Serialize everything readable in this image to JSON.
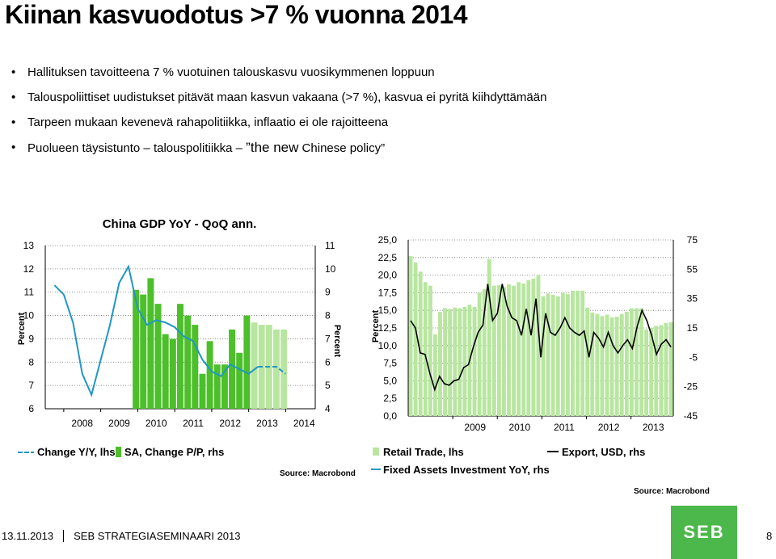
{
  "slide": {
    "title": "Kiinan kasvuodotus  >7 % vuonna 2014",
    "bullets": [
      "Hallituksen tavoitteena 7 % vuotuinen talouskasvu vuosikymmenen loppuun",
      "Talouspoliittiset uudistukset pitävät maan kasvun vakaana (>7 %), kasvua ei pyritä kiihdyttämään",
      "Tarpeen mukaan kevenevä rahapolitiikka, inflaatio ei ole rajoitteena",
      "Puolueen täysistunto – talouspolitiikka – "
    ],
    "bullet4_em": "the new",
    "bullet4_tail": " Chinese policy”",
    "bullet4_quote": "”",
    "footer_date": "13.11.2013",
    "footer_event": "SEB STRATEGIASEMINAARI 2013",
    "page_number": "8",
    "logo_text": "SEB",
    "colors": {
      "bar_dark": "#4cbf2a",
      "bar_light": "#b8e6a0",
      "line_blue": "#2196c4",
      "export_line": "#000000",
      "logo_green": "#4cb74a"
    }
  },
  "chart_data": [
    {
      "type": "bar",
      "title": "China GDP YoY - QoQ ann.",
      "ylabel_left": "Percent",
      "ylabel_right": "Percent",
      "ylim_left": [
        6,
        13
      ],
      "ylim_right": [
        4,
        11
      ],
      "yticks_left": [
        "6",
        "7",
        "8",
        "9",
        "10",
        "11",
        "12",
        "13"
      ],
      "yticks_right": [
        "4",
        "5",
        "6",
        "7",
        "8",
        "9",
        "10",
        "11"
      ],
      "x_labels": [
        "2008",
        "2009",
        "2010",
        "2011",
        "2012",
        "2013",
        "2014"
      ],
      "x_start": 2007.5,
      "x_end": 2014.8,
      "legend": [
        "Change Y/Y, lhs",
        "SA, Change P/P, rhs"
      ],
      "source": "Source: Macrobond",
      "bars_rhs": [
        {
          "x": 2009.95,
          "v": 9.1,
          "kind": "actual"
        },
        {
          "x": 2010.15,
          "v": 8.9,
          "kind": "actual"
        },
        {
          "x": 2010.35,
          "v": 9.6,
          "kind": "actual"
        },
        {
          "x": 2010.55,
          "v": 8.5,
          "kind": "actual"
        },
        {
          "x": 2010.75,
          "v": 7.2,
          "kind": "actual"
        },
        {
          "x": 2010.95,
          "v": 7.0,
          "kind": "actual"
        },
        {
          "x": 2011.15,
          "v": 8.5,
          "kind": "actual"
        },
        {
          "x": 2011.35,
          "v": 8.0,
          "kind": "actual"
        },
        {
          "x": 2011.55,
          "v": 7.6,
          "kind": "actual"
        },
        {
          "x": 2011.75,
          "v": 5.5,
          "kind": "actual"
        },
        {
          "x": 2011.95,
          "v": 6.9,
          "kind": "actual"
        },
        {
          "x": 2012.15,
          "v": 5.9,
          "kind": "actual"
        },
        {
          "x": 2012.35,
          "v": 5.9,
          "kind": "actual"
        },
        {
          "x": 2012.55,
          "v": 7.4,
          "kind": "actual"
        },
        {
          "x": 2012.75,
          "v": 6.4,
          "kind": "actual"
        },
        {
          "x": 2012.95,
          "v": 8.0,
          "kind": "actual"
        },
        {
          "x": 2013.15,
          "v": 7.7,
          "kind": "forecast"
        },
        {
          "x": 2013.35,
          "v": 7.6,
          "kind": "forecast"
        },
        {
          "x": 2013.55,
          "v": 7.6,
          "kind": "forecast"
        },
        {
          "x": 2013.75,
          "v": 7.4,
          "kind": "forecast"
        },
        {
          "x": 2013.95,
          "v": 7.4,
          "kind": "forecast"
        }
      ],
      "line_lhs": [
        {
          "x": 2007.75,
          "v": 11.3
        },
        {
          "x": 2008.0,
          "v": 10.9
        },
        {
          "x": 2008.25,
          "v": 9.7
        },
        {
          "x": 2008.5,
          "v": 7.5
        },
        {
          "x": 2008.75,
          "v": 6.6
        },
        {
          "x": 2009.0,
          "v": 8.1
        },
        {
          "x": 2009.25,
          "v": 9.6
        },
        {
          "x": 2009.5,
          "v": 11.4
        },
        {
          "x": 2009.75,
          "v": 12.1
        },
        {
          "x": 2010.0,
          "v": 10.3
        },
        {
          "x": 2010.25,
          "v": 9.6
        },
        {
          "x": 2010.5,
          "v": 9.8
        },
        {
          "x": 2010.75,
          "v": 9.7
        },
        {
          "x": 2011.0,
          "v": 9.5
        },
        {
          "x": 2011.25,
          "v": 9.1
        },
        {
          "x": 2011.5,
          "v": 8.9
        },
        {
          "x": 2011.75,
          "v": 8.1
        },
        {
          "x": 2012.0,
          "v": 7.6
        },
        {
          "x": 2012.25,
          "v": 7.4
        },
        {
          "x": 2012.5,
          "v": 7.9
        },
        {
          "x": 2012.75,
          "v": 7.7
        },
        {
          "x": 2013.0,
          "v": 7.5
        },
        {
          "x": 2013.25,
          "v": 7.8
        }
      ],
      "line_lhs_forecast": [
        {
          "x": 2013.25,
          "v": 7.8
        },
        {
          "x": 2013.5,
          "v": 7.8
        },
        {
          "x": 2013.75,
          "v": 7.8
        },
        {
          "x": 2014.0,
          "v": 7.5
        }
      ]
    },
    {
      "type": "bar",
      "ylabel_left": "Percent",
      "ylim_left": [
        0,
        25
      ],
      "ylim_right": [
        -45,
        75
      ],
      "yticks_left": [
        "0,0",
        "2,5",
        "5,0",
        "7,5",
        "10,0",
        "12,5",
        "15,0",
        "17,5",
        "20,0",
        "22,5",
        "25,0"
      ],
      "yticks_right": [
        "-45",
        "-25",
        "-5",
        "15",
        "35",
        "55",
        "75"
      ],
      "yticks_right_values": [
        -45,
        -25,
        -5,
        15,
        35,
        55,
        75
      ],
      "x_labels": [
        "2009",
        "2010",
        "2011",
        "2012",
        "2013"
      ],
      "x_start": 2008.0,
      "x_end": 2013.95,
      "legend": [
        "Retail Trade, lhs",
        "Export, USD, rhs",
        "Fixed Assets Investment YoY, rhs"
      ],
      "source": "Source: Macrobond",
      "retail_lhs": [
        22.7,
        21.8,
        20.5,
        19.0,
        18.5,
        11.6,
        14.8,
        15.3,
        15.2,
        15.4,
        15.3,
        15.5,
        15.8,
        15.5,
        17.5,
        18.0,
        22.3,
        18.5,
        18.6,
        18.3,
        18.7,
        18.5,
        19.0,
        18.8,
        19.3,
        19.5,
        20.0,
        17.0,
        17.4,
        17.2,
        17.0,
        17.5,
        17.3,
        17.8,
        17.8,
        17.8,
        15.4,
        14.7,
        14.5,
        14.2,
        14.4,
        14.0,
        14.1,
        14.5,
        14.8,
        15.3,
        15.3,
        15.3,
        12.3,
        12.5,
        12.8,
        12.9,
        13.2,
        13.3
      ],
      "export_rhs": [
        20,
        15,
        -2,
        -3,
        -16,
        -27,
        -18,
        -23,
        -24,
        -21,
        -20,
        -12,
        -10,
        2,
        12,
        17,
        45,
        20,
        25,
        45,
        30,
        22,
        20,
        10,
        28,
        10,
        35,
        -5,
        25,
        12,
        10,
        15,
        22,
        15,
        12,
        10,
        13,
        -5,
        12,
        8,
        2,
        12,
        3,
        -2,
        3,
        7,
        1,
        16,
        27,
        20,
        10,
        -3,
        4,
        7,
        2
      ]
    }
  ]
}
